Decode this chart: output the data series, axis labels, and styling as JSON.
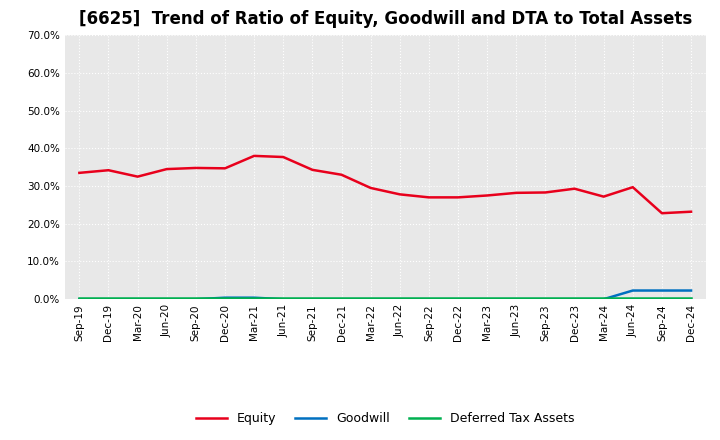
{
  "title": "[6625]  Trend of Ratio of Equity, Goodwill and DTA to Total Assets",
  "x_labels": [
    "Sep-19",
    "Dec-19",
    "Mar-20",
    "Jun-20",
    "Sep-20",
    "Dec-20",
    "Mar-21",
    "Jun-21",
    "Sep-21",
    "Dec-21",
    "Mar-22",
    "Jun-22",
    "Sep-22",
    "Dec-22",
    "Mar-23",
    "Jun-23",
    "Sep-23",
    "Dec-23",
    "Mar-24",
    "Jun-24",
    "Sep-24",
    "Dec-24"
  ],
  "equity": [
    33.5,
    34.2,
    32.5,
    34.5,
    34.8,
    34.7,
    38.0,
    37.7,
    34.3,
    33.0,
    29.5,
    27.8,
    27.0,
    27.0,
    27.5,
    28.2,
    28.3,
    29.3,
    27.2,
    29.7,
    22.8,
    23.2
  ],
  "goodwill": [
    0.0,
    0.0,
    0.0,
    0.0,
    0.0,
    0.4,
    0.4,
    0.0,
    0.0,
    0.0,
    0.0,
    0.0,
    0.0,
    0.0,
    0.0,
    0.0,
    0.0,
    0.0,
    0.0,
    2.3,
    2.3,
    2.3
  ],
  "dta": [
    0.3,
    0.3,
    0.3,
    0.3,
    0.3,
    0.3,
    0.3,
    0.3,
    0.3,
    0.3,
    0.3,
    0.3,
    0.3,
    0.3,
    0.3,
    0.3,
    0.3,
    0.3,
    0.3,
    0.3,
    0.3,
    0.3
  ],
  "equity_color": "#e8001c",
  "goodwill_color": "#0070c0",
  "dta_color": "#00b050",
  "ylim": [
    0,
    70
  ],
  "yticks": [
    0,
    10,
    20,
    30,
    40,
    50,
    60,
    70
  ],
  "plot_bg_color": "#e8e8e8",
  "fig_bg_color": "#ffffff",
  "grid_color": "#ffffff",
  "title_fontsize": 12,
  "tick_fontsize": 7.5,
  "legend_labels": [
    "Equity",
    "Goodwill",
    "Deferred Tax Assets"
  ]
}
